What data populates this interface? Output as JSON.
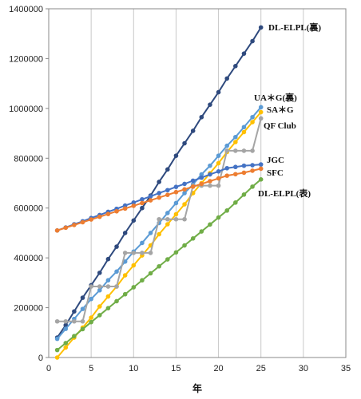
{
  "chart_data": {
    "type": "line",
    "xlabel": "年",
    "ylabel": "",
    "xlim": [
      0,
      35
    ],
    "ylim": [
      0,
      1400000
    ],
    "xticks": [
      "0",
      "5",
      "10",
      "15",
      "20",
      "25",
      "30",
      "35"
    ],
    "yticks": [
      "0",
      "200000",
      "400000",
      "600000",
      "800000",
      "1000000",
      "1200000",
      "1400000"
    ],
    "grid": "vertical",
    "legend": "inline labels at right end of lines",
    "x": [
      1,
      2,
      3,
      4,
      5,
      6,
      7,
      8,
      9,
      10,
      11,
      12,
      13,
      14,
      15,
      16,
      17,
      18,
      19,
      20,
      21,
      22,
      23,
      24,
      25
    ],
    "series": [
      {
        "name": "DL-ELPL(裏)",
        "color": "#2f4a7e",
        "values": [
          80000,
          130000,
          185000,
          240000,
          290000,
          340000,
          395000,
          445000,
          500000,
          550000,
          600000,
          650000,
          705000,
          755000,
          810000,
          860000,
          910000,
          965000,
          1015000,
          1065000,
          1120000,
          1170000,
          1220000,
          1270000,
          1325000
        ]
      },
      {
        "name": "UA＊G(裏)",
        "color": "#5b9bd5",
        "values": [
          75000,
          115000,
          155000,
          195000,
          235000,
          270000,
          310000,
          345000,
          385000,
          425000,
          460000,
          500000,
          540000,
          580000,
          620000,
          660000,
          695000,
          735000,
          770000,
          810000,
          850000,
          885000,
          925000,
          965000,
          1005000
        ]
      },
      {
        "name": "SA＊G",
        "color": "#ffc000",
        "values": [
          0,
          40000,
          80000,
          120000,
          160000,
          205000,
          245000,
          285000,
          330000,
          370000,
          410000,
          450000,
          495000,
          535000,
          575000,
          615000,
          660000,
          700000,
          740000,
          780000,
          825000,
          865000,
          905000,
          945000,
          985000
        ]
      },
      {
        "name": "QF Club",
        "color": "#a5a5a5",
        "values": [
          145000,
          145000,
          145000,
          145000,
          285000,
          285000,
          285000,
          285000,
          420000,
          420000,
          420000,
          420000,
          555000,
          555000,
          555000,
          555000,
          690000,
          690000,
          690000,
          690000,
          830000,
          830000,
          830000,
          830000,
          960000
        ]
      },
      {
        "name": "JGC",
        "color": "#4472c4",
        "values": [
          510000,
          522000,
          535000,
          547000,
          560000,
          572000,
          585000,
          597000,
          610000,
          622000,
          635000,
          647000,
          660000,
          672000,
          685000,
          697000,
          710000,
          722000,
          735000,
          747000,
          760000,
          765000,
          770000,
          772000,
          775000
        ]
      },
      {
        "name": "SFC",
        "color": "#ed7d31",
        "values": [
          510000,
          521000,
          532000,
          543000,
          554000,
          565000,
          576000,
          587000,
          598000,
          609000,
          620000,
          631000,
          642000,
          653000,
          664000,
          675000,
          686000,
          697000,
          708000,
          719000,
          730000,
          736000,
          742000,
          750000,
          758000
        ]
      },
      {
        "name": "DL-ELPL(表)",
        "color": "#70ad47",
        "values": [
          30000,
          58000,
          86000,
          114000,
          142000,
          170000,
          198000,
          226000,
          254000,
          282000,
          310000,
          338000,
          366000,
          394000,
          422000,
          450000,
          478000,
          506000,
          534000,
          562000,
          590000,
          622000,
          654000,
          686000,
          715000
        ]
      }
    ]
  }
}
